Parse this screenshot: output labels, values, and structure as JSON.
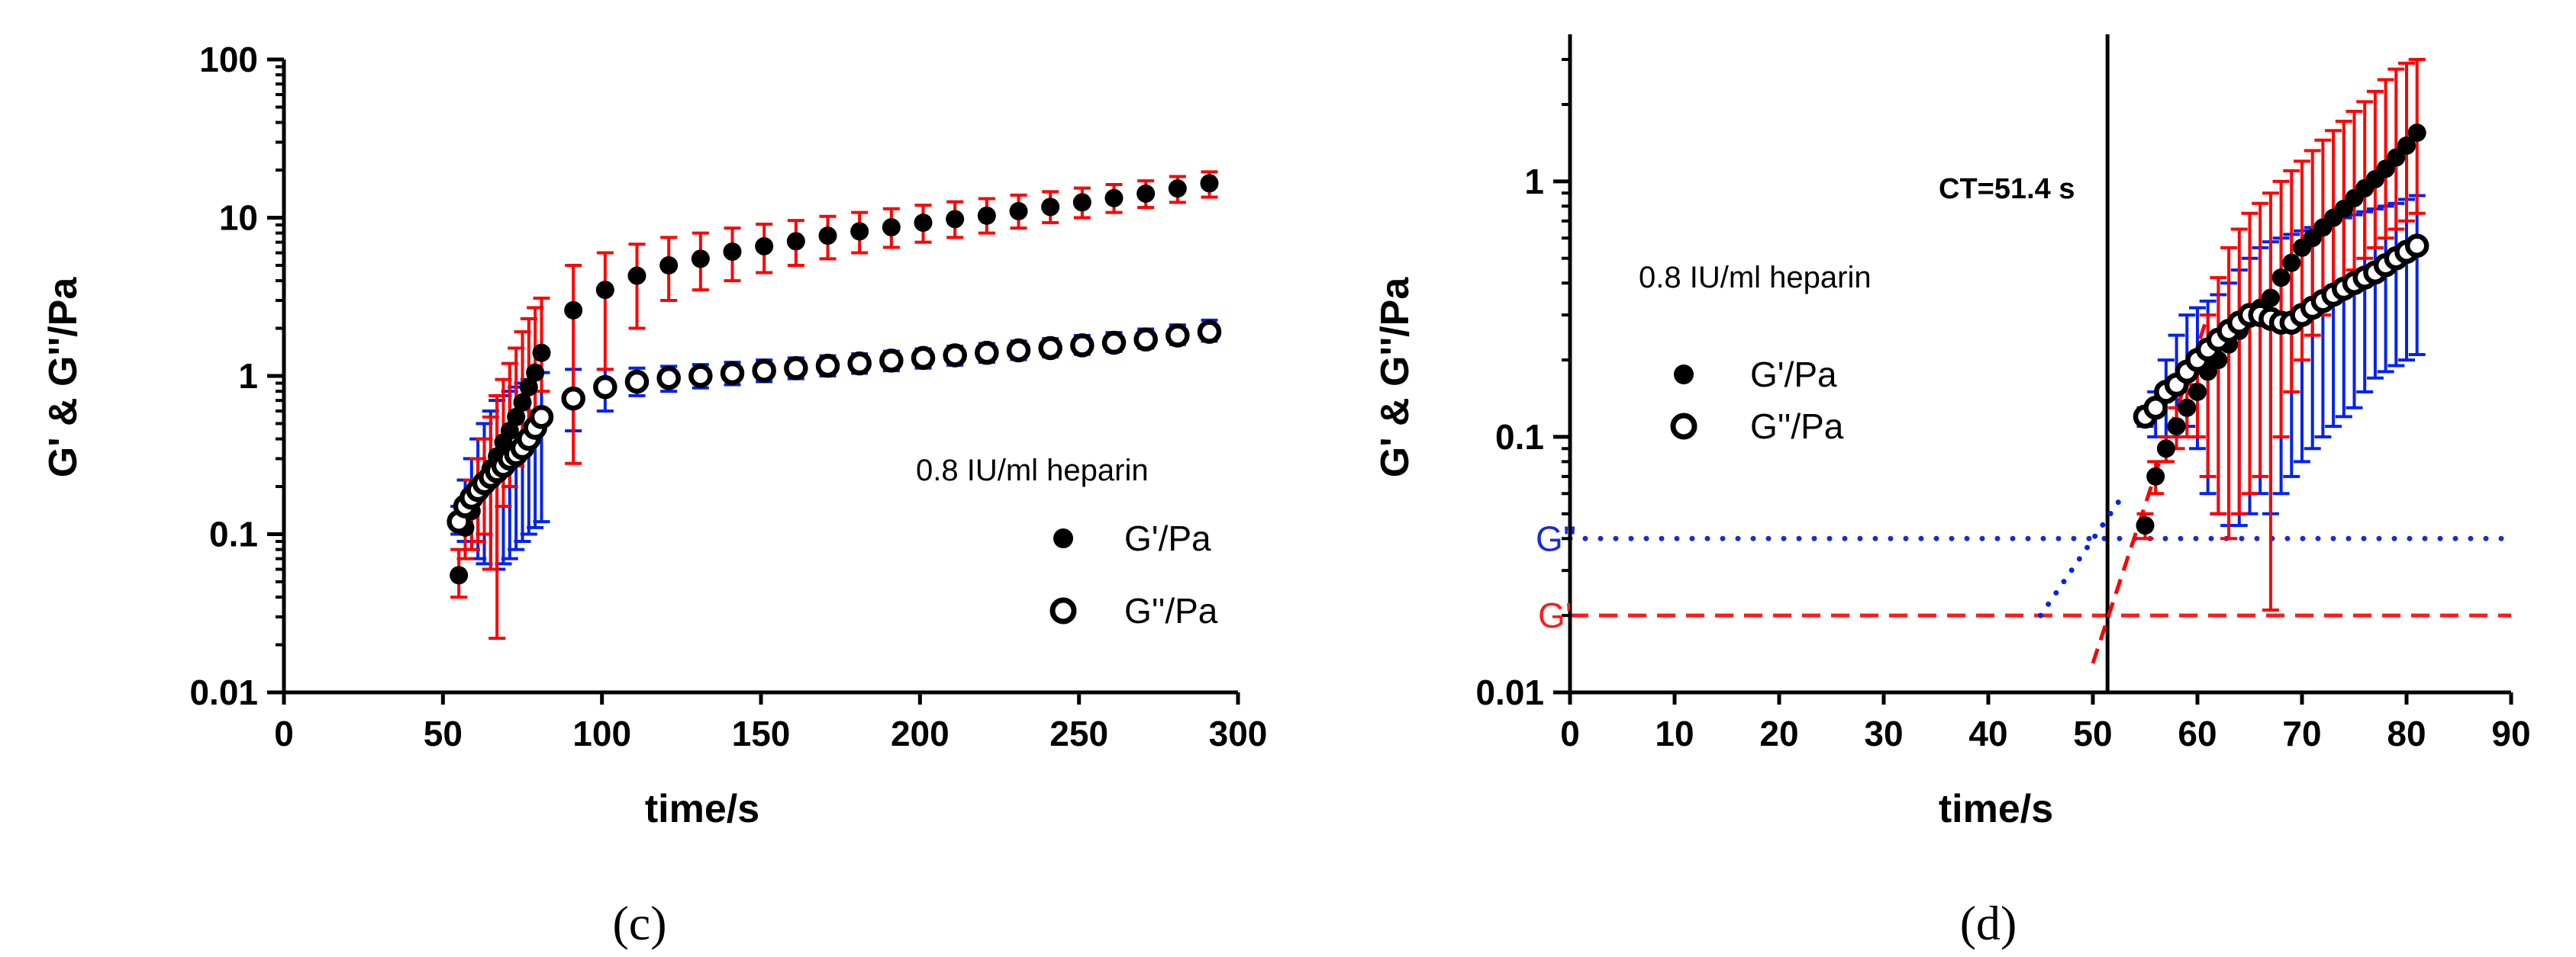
{
  "colors": {
    "gp_error": "#ff0000",
    "gpp_error": "#0022ee",
    "marker": "#000000",
    "gpp_ref": "#1a2bd6",
    "gp_ref": "#ff1a1a"
  },
  "chart_data": [
    {
      "id": "c",
      "type": "scatter",
      "panel_label": "(c)",
      "title": "",
      "xlabel": "time/s",
      "ylabel": "G' & G''/Pa",
      "xscale": "linear",
      "yscale": "log",
      "xlim": [
        0,
        300
      ],
      "ylim": [
        0.01,
        100
      ],
      "xticks": [
        0,
        50,
        100,
        150,
        200,
        250,
        300
      ],
      "xtick_labels": [
        "0",
        "50",
        "100",
        "150",
        "200",
        "250",
        "300"
      ],
      "yticks": [
        0.01,
        0.1,
        1,
        10,
        100
      ],
      "ytick_labels": [
        "0.01",
        "0.1",
        "1",
        "10",
        "100"
      ],
      "legend_title": "0.8 IU/ml heparin",
      "legend_position": "center-right",
      "series": [
        {
          "name": "G'/Pa",
          "marker": "filled-circle",
          "error_color": "red",
          "x": [
            55,
            57,
            59,
            61,
            63,
            65,
            67,
            69,
            71,
            73,
            75,
            77,
            79,
            81,
            91,
            101,
            111,
            121,
            131,
            141,
            151,
            161,
            171,
            181,
            191,
            201,
            211,
            221,
            231,
            241,
            251,
            261,
            271,
            281,
            291
          ],
          "y": [
            0.055,
            0.11,
            0.14,
            0.18,
            0.22,
            0.26,
            0.31,
            0.38,
            0.45,
            0.55,
            0.68,
            0.85,
            1.05,
            1.4,
            2.6,
            3.5,
            4.3,
            5.0,
            5.5,
            6.1,
            6.6,
            7.1,
            7.7,
            8.2,
            8.7,
            9.3,
            9.8,
            10.3,
            11,
            11.7,
            12.5,
            13.3,
            14.2,
            15.3,
            16.5
          ],
          "y_upper": [
            0.08,
            0.16,
            0.22,
            0.3,
            0.4,
            0.55,
            0.75,
            0.95,
            1.2,
            1.5,
            1.9,
            2.3,
            2.7,
            3.1,
            5.0,
            6.0,
            6.8,
            7.5,
            8.0,
            8.6,
            9.1,
            9.6,
            10.2,
            10.8,
            11.4,
            12,
            12.6,
            13.2,
            13.9,
            14.6,
            15.4,
            16.2,
            17.1,
            18.2,
            19.5
          ],
          "y_lower": [
            0.04,
            0.07,
            0.08,
            0.09,
            0.1,
            0.06,
            0.022,
            0.15,
            0.2,
            0.27,
            0.35,
            0.45,
            0.6,
            0.8,
            0.28,
            1.1,
            2.0,
            3.0,
            3.5,
            4.0,
            4.5,
            5.0,
            5.5,
            6.0,
            6.5,
            7.0,
            7.5,
            8.0,
            8.6,
            9.3,
            10,
            10.8,
            11.6,
            12.5,
            13.5
          ]
        },
        {
          "name": "G''/Pa",
          "marker": "open-circle",
          "error_color": "blue",
          "x": [
            55,
            57,
            59,
            61,
            63,
            65,
            67,
            69,
            71,
            73,
            75,
            77,
            79,
            81,
            91,
            101,
            111,
            121,
            131,
            141,
            151,
            161,
            171,
            181,
            191,
            201,
            211,
            221,
            231,
            241,
            251,
            261,
            271,
            281,
            291
          ],
          "y": [
            0.12,
            0.15,
            0.17,
            0.19,
            0.21,
            0.23,
            0.25,
            0.27,
            0.3,
            0.32,
            0.35,
            0.4,
            0.47,
            0.55,
            0.72,
            0.85,
            0.92,
            0.97,
            1.0,
            1.04,
            1.08,
            1.12,
            1.16,
            1.2,
            1.25,
            1.3,
            1.35,
            1.4,
            1.45,
            1.5,
            1.56,
            1.62,
            1.7,
            1.8,
            1.9
          ],
          "y_upper": [
            0.15,
            0.22,
            0.3,
            0.4,
            0.5,
            0.6,
            0.7,
            0.75,
            0.8,
            0.85,
            0.9,
            0.95,
            1.0,
            1.05,
            1.1,
            1.1,
            1.12,
            1.15,
            1.18,
            1.22,
            1.26,
            1.3,
            1.34,
            1.38,
            1.43,
            1.48,
            1.54,
            1.6,
            1.66,
            1.72,
            1.8,
            1.88,
            1.98,
            2.1,
            2.25
          ],
          "y_lower": [
            0.1,
            0.09,
            0.08,
            0.07,
            0.065,
            0.06,
            0.06,
            0.065,
            0.07,
            0.08,
            0.09,
            0.1,
            0.11,
            0.12,
            0.45,
            0.6,
            0.75,
            0.8,
            0.84,
            0.88,
            0.92,
            0.96,
            1.0,
            1.04,
            1.08,
            1.12,
            1.17,
            1.22,
            1.27,
            1.32,
            1.37,
            1.43,
            1.5,
            1.58,
            1.66
          ]
        }
      ]
    },
    {
      "id": "d",
      "type": "scatter",
      "panel_label": "(d)",
      "title": "",
      "xlabel": "time/s",
      "ylabel": "G' & G''/Pa",
      "xscale": "linear",
      "yscale": "log",
      "xlim": [
        0,
        90
      ],
      "ylim": [
        0.01,
        3
      ],
      "xticks": [
        0,
        10,
        20,
        30,
        40,
        50,
        60,
        70,
        80,
        90
      ],
      "xtick_labels": [
        "0",
        "10",
        "20",
        "30",
        "40",
        "50",
        "60",
        "70",
        "80",
        "90"
      ],
      "yticks": [
        0.01,
        0.1,
        1
      ],
      "ytick_labels": [
        "0.01",
        "0.1",
        "1"
      ],
      "legend_title": "0.8 IU/ml heparin",
      "legend_position": "top-left",
      "annotations": {
        "ct_label": "CT=51.4 s",
        "ct_x": 51.4,
        "gpp_ref_label": "G''",
        "gpp_ref_y": 0.04,
        "gp_ref_label": "G'",
        "gp_ref_y": 0.02
      },
      "fit_lines": [
        {
          "name": "G' fit",
          "color": "red",
          "style": "dashed",
          "x": [
            50,
            61
          ],
          "y": [
            0.013,
            0.3
          ]
        },
        {
          "name": "G'' fit",
          "color": "blue",
          "style": "dotted",
          "x": [
            45,
            53
          ],
          "y": [
            0.02,
            0.06
          ]
        }
      ],
      "series": [
        {
          "name": "G'/Pa",
          "marker": "filled-circle",
          "error_color": "red",
          "x": [
            55,
            56,
            57,
            58,
            59,
            60,
            61,
            62,
            63,
            64,
            65,
            66,
            67,
            68,
            69,
            70,
            71,
            72,
            73,
            74,
            75,
            76,
            77,
            78,
            79,
            80,
            81
          ],
          "y": [
            0.045,
            0.07,
            0.09,
            0.11,
            0.13,
            0.15,
            0.18,
            0.2,
            0.23,
            0.26,
            0.29,
            0.32,
            0.35,
            0.42,
            0.48,
            0.55,
            0.6,
            0.66,
            0.72,
            0.78,
            0.86,
            0.94,
            1.02,
            1.12,
            1.24,
            1.38,
            1.55
          ],
          "y_upper": [
            0.05,
            0.08,
            0.1,
            0.13,
            0.16,
            0.2,
            0.3,
            0.42,
            0.55,
            0.65,
            0.75,
            0.82,
            0.9,
            1.0,
            1.1,
            1.2,
            1.32,
            1.45,
            1.58,
            1.72,
            1.88,
            2.05,
            2.25,
            2.5,
            2.75,
            2.9,
            3.0
          ],
          "y_lower": [
            0.04,
            0.06,
            0.08,
            0.09,
            0.1,
            0.1,
            0.07,
            0.05,
            0.04,
            0.05,
            0.06,
            0.07,
            0.021,
            0.1,
            0.15,
            0.2,
            0.25,
            0.3,
            0.35,
            0.4,
            0.45,
            0.5,
            0.55,
            0.6,
            0.65,
            0.7,
            0.75
          ]
        },
        {
          "name": "G''/Pa",
          "marker": "open-circle",
          "error_color": "blue",
          "x": [
            55,
            56,
            57,
            58,
            59,
            60,
            61,
            62,
            63,
            64,
            65,
            66,
            67,
            68,
            69,
            70,
            71,
            72,
            73,
            74,
            75,
            76,
            77,
            78,
            79,
            80,
            81
          ],
          "y": [
            0.12,
            0.13,
            0.15,
            0.16,
            0.18,
            0.2,
            0.22,
            0.24,
            0.26,
            0.28,
            0.3,
            0.3,
            0.29,
            0.28,
            0.28,
            0.3,
            0.32,
            0.34,
            0.36,
            0.38,
            0.4,
            0.42,
            0.44,
            0.47,
            0.5,
            0.53,
            0.56
          ],
          "y_upper": [
            0.13,
            0.15,
            0.2,
            0.25,
            0.3,
            0.32,
            0.34,
            0.36,
            0.4,
            0.45,
            0.5,
            0.55,
            0.58,
            0.6,
            0.62,
            0.64,
            0.66,
            0.68,
            0.7,
            0.72,
            0.74,
            0.76,
            0.78,
            0.8,
            0.82,
            0.85,
            0.88
          ],
          "y_lower": [
            0.11,
            0.1,
            0.09,
            0.1,
            0.11,
            0.09,
            0.06,
            0.05,
            0.045,
            0.045,
            0.05,
            0.06,
            0.05,
            0.06,
            0.07,
            0.08,
            0.09,
            0.1,
            0.11,
            0.12,
            0.13,
            0.15,
            0.17,
            0.18,
            0.19,
            0.2,
            0.21
          ]
        }
      ]
    }
  ]
}
